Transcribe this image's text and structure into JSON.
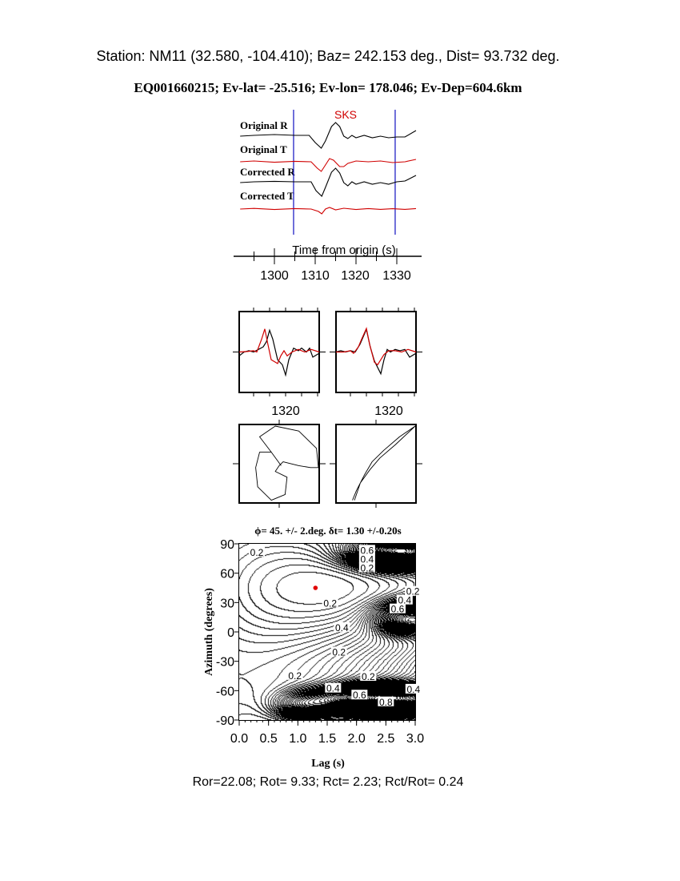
{
  "header": {
    "station_line": "Station: NM11 (32.580, -104.410); Baz=  242.153 deg., Dist=   93.732 deg.",
    "event_line": "EQ001660215; Ev-lat= -25.516; Ev-lon= 178.046; Ev-Dep=604.6km"
  },
  "footer": {
    "ratios": "Ror=22.08; Rot= 9.33; Rct= 2.23; Rct/Rot= 0.24"
  },
  "colors": {
    "trace_black": "#000000",
    "trace_red": "#d00000",
    "window_blue": "#1010c0",
    "phase_label": "#d00000"
  },
  "chart_data": [
    {
      "type": "line",
      "panel": "seismograms",
      "phase_label": "SKS",
      "xlabel": "Time from origin (s)",
      "x_ticks": [
        "1300",
        "1310",
        "1320",
        "1330"
      ],
      "x_range": [
        1291.6,
        1334.7
      ],
      "window": [
        1304.7,
        1329.6
      ],
      "series": [
        {
          "name": "Original R",
          "color": "black",
          "points": [
            [
              1291.6,
              0
            ],
            [
              1295,
              0.05
            ],
            [
              1300,
              0.1
            ],
            [
              1305,
              0.05
            ],
            [
              1308.5,
              0.05
            ],
            [
              1310,
              -0.4
            ],
            [
              1311.5,
              -0.75
            ],
            [
              1312.5,
              -0.3
            ],
            [
              1314,
              0.6
            ],
            [
              1315,
              0.85
            ],
            [
              1316,
              0.6
            ],
            [
              1317,
              0
            ],
            [
              1318,
              -0.15
            ],
            [
              1319,
              0.05
            ],
            [
              1320,
              -0.1
            ],
            [
              1322,
              0.05
            ],
            [
              1324,
              -0.1
            ],
            [
              1326,
              0
            ],
            [
              1328,
              -0.1
            ],
            [
              1330,
              -0.05
            ],
            [
              1332,
              -0.05
            ],
            [
              1334.7,
              0.35
            ]
          ]
        },
        {
          "name": "Original T",
          "color": "red",
          "points": [
            [
              1291.6,
              0
            ],
            [
              1295,
              0.05
            ],
            [
              1300,
              -0.03
            ],
            [
              1305,
              0.03
            ],
            [
              1309,
              0
            ],
            [
              1310.5,
              -0.4
            ],
            [
              1311.5,
              -0.6
            ],
            [
              1312.5,
              -0.2
            ],
            [
              1313.5,
              0.2
            ],
            [
              1314.5,
              0.1
            ],
            [
              1316,
              -0.3
            ],
            [
              1317,
              -0.3
            ],
            [
              1318,
              -0.1
            ],
            [
              1320,
              0.05
            ],
            [
              1323,
              0
            ],
            [
              1326,
              0.05
            ],
            [
              1329,
              -0.05
            ],
            [
              1332,
              0
            ],
            [
              1334.7,
              0.15
            ]
          ]
        },
        {
          "name": "Corrected R",
          "color": "black",
          "points": [
            [
              1291.6,
              0
            ],
            [
              1295,
              0.05
            ],
            [
              1300,
              0.08
            ],
            [
              1305,
              0.05
            ],
            [
              1309,
              0.05
            ],
            [
              1310.2,
              -0.5
            ],
            [
              1311.6,
              -0.85
            ],
            [
              1312.5,
              -0.3
            ],
            [
              1314,
              0.65
            ],
            [
              1315,
              0.9
            ],
            [
              1316,
              0.6
            ],
            [
              1317,
              0
            ],
            [
              1318,
              -0.2
            ],
            [
              1319,
              0.05
            ],
            [
              1320,
              -0.1
            ],
            [
              1322,
              0.05
            ],
            [
              1324,
              -0.1
            ],
            [
              1326,
              0
            ],
            [
              1328,
              -0.1
            ],
            [
              1330,
              0.05
            ],
            [
              1332,
              0.1
            ],
            [
              1334.7,
              0.45
            ]
          ]
        },
        {
          "name": "Corrected T",
          "color": "red",
          "points": [
            [
              1291.6,
              0
            ],
            [
              1295,
              0.04
            ],
            [
              1300,
              -0.03
            ],
            [
              1305,
              0.03
            ],
            [
              1309,
              0
            ],
            [
              1310.8,
              -0.15
            ],
            [
              1311.6,
              -0.3
            ],
            [
              1312.5,
              0
            ],
            [
              1313.5,
              0.1
            ],
            [
              1315,
              -0.05
            ],
            [
              1317,
              0.05
            ],
            [
              1320,
              -0.03
            ],
            [
              1323,
              0.03
            ],
            [
              1326,
              -0.02
            ],
            [
              1329,
              0.02
            ],
            [
              1332,
              -0.02
            ],
            [
              1334.7,
              0.03
            ]
          ]
        }
      ]
    },
    {
      "type": "line",
      "panel": "fast-slow-original",
      "x_ticks": [
        "1320"
      ],
      "x_range": [
        1305.5,
        1330.5
      ],
      "series": [
        {
          "color": "red",
          "points": [
            [
              1305.5,
              0
            ],
            [
              1308,
              0.02
            ],
            [
              1310,
              0.05
            ],
            [
              1311,
              0
            ],
            [
              1312.5,
              0.5
            ],
            [
              1313.5,
              0.9
            ],
            [
              1314.3,
              0.4
            ],
            [
              1315.5,
              -0.3
            ],
            [
              1317.5,
              -0.45
            ],
            [
              1318.5,
              -0.15
            ],
            [
              1319.5,
              0.05
            ],
            [
              1320.5,
              -0.15
            ],
            [
              1322,
              0
            ],
            [
              1324,
              0.1
            ],
            [
              1326,
              0
            ],
            [
              1328,
              0.1
            ],
            [
              1330.5,
              0
            ]
          ]
        },
        {
          "color": "black",
          "points": [
            [
              1305.5,
              -0.15
            ],
            [
              1307,
              0
            ],
            [
              1308.5,
              0.05
            ],
            [
              1310,
              0
            ],
            [
              1311.5,
              0.1
            ],
            [
              1313,
              0.2
            ],
            [
              1314,
              0.4
            ],
            [
              1315,
              0.85
            ],
            [
              1316,
              0.5
            ],
            [
              1317.5,
              -0.3
            ],
            [
              1319,
              -0.5
            ],
            [
              1320,
              -0.9
            ],
            [
              1321,
              -0.3
            ],
            [
              1322.5,
              0.15
            ],
            [
              1324,
              0.05
            ],
            [
              1325,
              0.15
            ],
            [
              1326.5,
              0
            ],
            [
              1327.5,
              0.15
            ],
            [
              1328.5,
              -0.2
            ],
            [
              1330.5,
              -0.05
            ]
          ]
        }
      ]
    },
    {
      "type": "line",
      "panel": "fast-slow-corrected",
      "x_ticks": [
        "1320"
      ],
      "x_range": [
        1305.5,
        1330.5
      ],
      "series": [
        {
          "color": "red",
          "points": [
            [
              1305.5,
              0
            ],
            [
              1308,
              0
            ],
            [
              1310,
              0.05
            ],
            [
              1311,
              -0.05
            ],
            [
              1312.5,
              0.2
            ],
            [
              1313.5,
              0.5
            ],
            [
              1315,
              0.92
            ],
            [
              1316,
              0.3
            ],
            [
              1317.5,
              -0.4
            ],
            [
              1318.5,
              -0.5
            ],
            [
              1319.5,
              -0.3
            ],
            [
              1320.5,
              -0.1
            ],
            [
              1322,
              0.05
            ],
            [
              1324,
              0.05
            ],
            [
              1326,
              0
            ],
            [
              1328,
              0.1
            ],
            [
              1330.5,
              0
            ]
          ]
        },
        {
          "color": "black",
          "points": [
            [
              1305.5,
              0
            ],
            [
              1307,
              0.05
            ],
            [
              1308.5,
              0
            ],
            [
              1310,
              0.05
            ],
            [
              1311.5,
              0
            ],
            [
              1313,
              0.3
            ],
            [
              1315,
              0.88
            ],
            [
              1316.2,
              0.2
            ],
            [
              1317.5,
              -0.35
            ],
            [
              1319.5,
              -0.85
            ],
            [
              1320.5,
              -0.3
            ],
            [
              1321.5,
              0.1
            ],
            [
              1322.5,
              0
            ],
            [
              1324,
              0.1
            ],
            [
              1325.5,
              0.05
            ],
            [
              1327,
              0.1
            ],
            [
              1328.5,
              -0.2
            ],
            [
              1330.5,
              -0.05
            ]
          ]
        }
      ]
    },
    {
      "type": "scatter",
      "panel": "particle-motion-original",
      "series": [
        {
          "color": "black",
          "points": [
            [
              0.05,
              -0.05
            ],
            [
              -0.2,
              0.3
            ],
            [
              -0.5,
              0.7
            ],
            [
              -0.1,
              0.98
            ],
            [
              0.5,
              0.85
            ],
            [
              0.95,
              0.4
            ],
            [
              1.0,
              -0.1
            ],
            [
              0.8,
              -0.1
            ],
            [
              0.5,
              -0.05
            ],
            [
              0.1,
              0.05
            ],
            [
              0.0,
              -0.05
            ],
            [
              -0.1,
              -0.2
            ],
            [
              0.2,
              -0.35
            ],
            [
              0.15,
              -0.8
            ],
            [
              -0.2,
              -0.95
            ],
            [
              -0.55,
              -0.6
            ],
            [
              -0.6,
              -0.1
            ],
            [
              -0.5,
              0.3
            ],
            [
              -0.2,
              0.3
            ]
          ]
        }
      ]
    },
    {
      "type": "scatter",
      "panel": "particle-motion-corrected",
      "series": [
        {
          "color": "black",
          "points": [
            [
              -0.55,
              -0.95
            ],
            [
              -0.4,
              -0.5
            ],
            [
              -0.15,
              -0.15
            ],
            [
              0.1,
              0.15
            ],
            [
              0.5,
              0.5
            ],
            [
              1.0,
              0.98
            ],
            [
              0.6,
              0.7
            ],
            [
              0.2,
              0.35
            ],
            [
              -0.1,
              0.05
            ],
            [
              -0.3,
              -0.3
            ],
            [
              -0.5,
              -0.7
            ],
            [
              -0.6,
              -0.95
            ]
          ]
        }
      ]
    },
    {
      "type": "contour",
      "panel": "energy-grid",
      "title": "ϕ= 45. +/- 2.deg. δt= 1.30 +/-0.20s",
      "xlabel": "Lag (s)",
      "ylabel": "Azimuth (degrees)",
      "xlim": [
        0.0,
        3.0
      ],
      "ylim": [
        -90,
        90
      ],
      "x_ticks": [
        "0.0",
        "0.5",
        "1.0",
        "1.5",
        "2.0",
        "2.5",
        "3.0"
      ],
      "y_ticks": [
        "90",
        "60",
        "30",
        "0",
        "-30",
        "-60",
        "-90"
      ],
      "best_fit": {
        "lag": 1.3,
        "azimuth": 45,
        "lag_error": 0.2,
        "azimuth_error": 2
      },
      "contour_labels": [
        {
          "lag": 0.3,
          "az": 82,
          "text": "0.2"
        },
        {
          "lag": 2.18,
          "az": 84,
          "text": "0.6"
        },
        {
          "lag": 2.18,
          "az": 75,
          "text": "0.4"
        },
        {
          "lag": 2.18,
          "az": 66,
          "text": "0.2"
        },
        {
          "lag": 2.96,
          "az": 42,
          "text": "0.2"
        },
        {
          "lag": 2.82,
          "az": 33,
          "text": "0.4"
        },
        {
          "lag": 2.7,
          "az": 24,
          "text": "0.6"
        },
        {
          "lag": 1.55,
          "az": 30,
          "text": "0.2"
        },
        {
          "lag": 1.75,
          "az": 5,
          "text": "0.4"
        },
        {
          "lag": 1.7,
          "az": -20,
          "text": "0.2"
        },
        {
          "lag": 0.95,
          "az": -44,
          "text": "0.2"
        },
        {
          "lag": 2.2,
          "az": -45,
          "text": "0.2"
        },
        {
          "lag": 1.6,
          "az": -57,
          "text": "0.4"
        },
        {
          "lag": 2.05,
          "az": -64,
          "text": "0.6"
        },
        {
          "lag": 2.5,
          "az": -71,
          "text": "0.8"
        },
        {
          "lag": 2.97,
          "az": -58,
          "text": "0.4"
        }
      ]
    }
  ]
}
